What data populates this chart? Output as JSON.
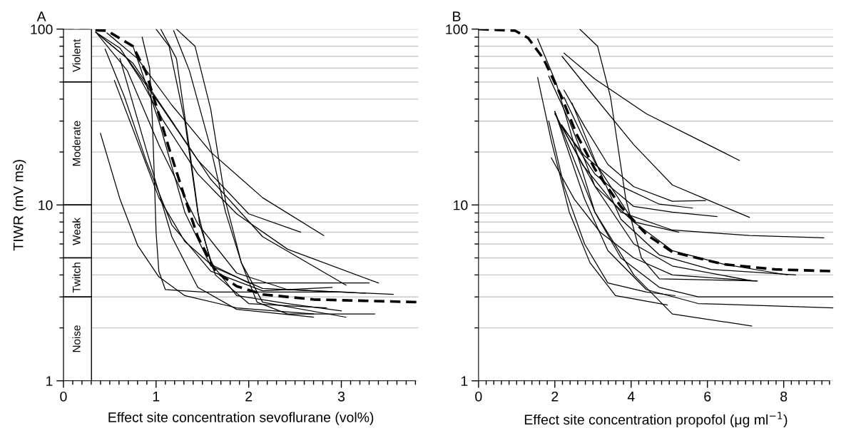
{
  "chart_data": [
    {
      "type": "line",
      "title": "A",
      "xlabel": "Effect site concentration sevoflurane (vol%)",
      "ylabel": "TIWR (mV ms)",
      "log": "y",
      "grid": "y",
      "xlim": [
        0,
        3.83
      ],
      "ylim": [
        1,
        100
      ],
      "xticks": [
        0,
        {
          "value": 0.1,
          "label": null
        },
        {
          "value": 0.2,
          "label": null
        },
        {
          "value": 0.3,
          "label": null
        },
        {
          "value": 0.4,
          "label": null
        },
        {
          "value": 0.5,
          "label": null
        },
        {
          "value": 0.6,
          "label": null
        },
        {
          "value": 0.7,
          "label": null
        },
        {
          "value": 0.8,
          "label": null
        },
        {
          "value": 0.9,
          "label": null
        },
        1,
        {
          "value": 1.1,
          "label": null
        },
        {
          "value": 1.2,
          "label": null
        },
        {
          "value": 1.3,
          "label": null
        },
        {
          "value": 1.4,
          "label": null
        },
        {
          "value": 1.5,
          "label": null
        },
        {
          "value": 1.6,
          "label": null
        },
        {
          "value": 1.7,
          "label": null
        },
        {
          "value": 1.8,
          "label": null
        },
        {
          "value": 1.9,
          "label": null
        },
        2,
        {
          "value": 2.1,
          "label": null
        },
        {
          "value": 2.2,
          "label": null
        },
        {
          "value": 2.3,
          "label": null
        },
        {
          "value": 2.4,
          "label": null
        },
        {
          "value": 2.5,
          "label": null
        },
        {
          "value": 2.6,
          "label": null
        },
        {
          "value": 2.7,
          "label": null
        },
        {
          "value": 2.8,
          "label": null
        },
        {
          "value": 2.9,
          "label": null
        },
        3,
        {
          "value": 3.1,
          "label": null
        },
        {
          "value": 3.2,
          "label": null
        },
        {
          "value": 3.3,
          "label": null
        },
        {
          "value": 3.4,
          "label": null
        },
        {
          "value": 3.5,
          "label": null
        },
        {
          "value": 3.6,
          "label": null
        },
        {
          "value": 3.7,
          "label": null
        },
        {
          "value": 3.8,
          "label": null
        }
      ],
      "yticks": [
        1,
        {
          "value": 2,
          "label": null
        },
        {
          "value": 3,
          "label": null
        },
        {
          "value": 4,
          "label": null
        },
        {
          "value": 5,
          "label": null
        },
        {
          "value": 6,
          "label": null
        },
        {
          "value": 7,
          "label": null
        },
        {
          "value": 8,
          "label": null
        },
        {
          "value": 9,
          "label": null
        },
        10,
        {
          "value": 20,
          "label": null
        },
        {
          "value": 30,
          "label": null
        },
        {
          "value": 40,
          "label": null
        },
        {
          "value": 50,
          "label": null
        },
        {
          "value": 60,
          "label": null
        },
        {
          "value": 70,
          "label": null
        },
        {
          "value": 80,
          "label": null
        },
        {
          "value": 90,
          "label": null
        },
        100
      ],
      "bands": [
        {
          "axis": "y",
          "from": 50,
          "to": 100,
          "label": "Violent",
          "color": "#ffffff"
        },
        {
          "axis": "y",
          "from": 10,
          "to": 50,
          "label": "Moderate",
          "color": "#ffffff"
        },
        {
          "axis": "y",
          "from": 5,
          "to": 10,
          "label": "Weak",
          "color": "#ffffff"
        },
        {
          "axis": "y",
          "from": 3,
          "to": 5,
          "label": "Twitch",
          "color": "#ffffff"
        },
        {
          "axis": "y",
          "from": 1,
          "to": 3,
          "label": "Noise",
          "color": "#ffffff"
        }
      ],
      "series": [
        {
          "color": "#000000",
          "x": [
            0.4,
            0.61,
            0.8,
            1.03,
            1.31,
            1.87,
            2.7
          ],
          "values": [
            25.5,
            10.8,
            5.9,
            3.9,
            3.05,
            2.6,
            2.4
          ]
        },
        {
          "color": "#000000",
          "x": [
            0.85,
            0.93,
            0.96,
            0.98,
            1.0,
            1.03,
            1.1,
            1.5,
            3.05
          ],
          "values": [
            90,
            60,
            30,
            15,
            7,
            4.2,
            3.3,
            3.2,
            3.2
          ]
        },
        {
          "color": "#000000",
          "x": [
            0.45,
            0.66,
            0.89,
            1.17,
            1.59,
            2.15,
            2.9
          ],
          "values": [
            77,
            41,
            18,
            7.7,
            4.2,
            3.25,
            3.4
          ]
        },
        {
          "color": "#000000",
          "x": [
            0.55,
            0.75,
            1.03,
            1.31,
            1.59,
            2.0,
            3.3
          ],
          "values": [
            51,
            27,
            11,
            6.2,
            4.6,
            3.6,
            3.6
          ]
        },
        {
          "color": "#000000",
          "x": [
            0.35,
            0.61,
            0.83,
            1.08,
            1.45,
            1.87,
            2.42,
            3.4
          ],
          "values": [
            96,
            78,
            52,
            30,
            15,
            8.9,
            5.6,
            3.6
          ]
        },
        {
          "color": "#000000",
          "x": [
            0.35,
            0.69,
            1.03,
            1.45,
            2.0,
            2.56
          ],
          "values": [
            96,
            68,
            38,
            18,
            8.9,
            7.0
          ]
        },
        {
          "color": "#000000",
          "x": [
            0.47,
            0.8,
            1.17,
            1.59,
            2.15,
            2.81
          ],
          "values": [
            95,
            68,
            37,
            20,
            11,
            6.7
          ]
        },
        {
          "color": "#000000",
          "x": [
            0.35,
            0.75,
            1.17,
            1.59,
            2.15,
            3.05
          ],
          "values": [
            96,
            64,
            30,
            14,
            6.6,
            3.5
          ]
        },
        {
          "color": "#000000",
          "x": [
            1.0,
            1.14,
            1.31,
            1.45,
            1.59,
            1.87,
            2.42,
            3.0
          ],
          "values": [
            100,
            80,
            30,
            9.1,
            4.7,
            3.05,
            2.75,
            2.5
          ]
        },
        {
          "color": "#000000",
          "x": [
            1.05,
            1.22,
            1.36,
            1.47,
            1.64,
            2.0,
            2.84
          ],
          "values": [
            100,
            68,
            21,
            7.8,
            4.0,
            2.75,
            2.6
          ]
        },
        {
          "color": "#000000",
          "x": [
            1.19,
            1.36,
            1.59,
            1.75,
            1.92,
            2.15,
            3.05
          ],
          "values": [
            98,
            58,
            21,
            9.1,
            4.7,
            2.8,
            2.3
          ]
        },
        {
          "color": "#000000",
          "x": [
            1.22,
            1.42,
            1.59,
            1.75,
            1.92,
            2.09,
            2.42,
            3.36
          ],
          "values": [
            100,
            80,
            35,
            10.5,
            4.7,
            2.8,
            2.4,
            2.4
          ]
        },
        {
          "color": "#000000",
          "x": [
            0.35,
            0.69,
            1.03,
            1.45,
            1.87,
            2.42,
            3.56
          ],
          "values": [
            96,
            58,
            22,
            7.8,
            4.1,
            3.3,
            3.1
          ]
        },
        {
          "color": "#000000",
          "x": [
            0.75,
            1.03,
            1.31,
            1.59,
            2.15,
            3.26
          ],
          "values": [
            80,
            30,
            9.1,
            4.5,
            3.35,
            3.15
          ]
        },
        {
          "color": "#000000",
          "x": [
            0.61,
            0.89,
            1.17,
            1.45,
            1.87,
            2.7
          ],
          "values": [
            68,
            21,
            6.6,
            3.4,
            2.55,
            2.3
          ]
        },
        {
          "color": "#000000",
          "line_style": "dashed",
          "x": [
            0,
            0.47,
            0.75,
            0.89,
            1.0,
            1.14,
            1.31,
            1.45,
            1.64,
            1.87,
            2.15,
            2.7,
            3.83
          ],
          "values": [
            100,
            98,
            80,
            57,
            37,
            21,
            11,
            6.6,
            4.2,
            3.45,
            3.1,
            2.9,
            2.8
          ]
        }
      ]
    },
    {
      "type": "line",
      "title": "B",
      "xlabel": "Effect site concentration propofol (μg ml$^{−1}$)",
      "log": "y",
      "grid": "y",
      "xlim": [
        0,
        9.3
      ],
      "ylim": [
        1,
        100
      ],
      "xticks": [
        0,
        {
          "value": 0.2,
          "label": null
        },
        {
          "value": 0.4,
          "label": null
        },
        {
          "value": 0.6,
          "label": null
        },
        {
          "value": 0.8,
          "label": null
        },
        {
          "value": 1.0,
          "label": null
        },
        {
          "value": 1.2,
          "label": null
        },
        {
          "value": 1.4,
          "label": null
        },
        {
          "value": 1.6,
          "label": null
        },
        {
          "value": 1.8,
          "label": null
        },
        2,
        {
          "value": 2.2,
          "label": null
        },
        {
          "value": 2.4,
          "label": null
        },
        {
          "value": 2.6,
          "label": null
        },
        {
          "value": 2.8,
          "label": null
        },
        {
          "value": 3.0,
          "label": null
        },
        {
          "value": 3.2,
          "label": null
        },
        {
          "value": 3.4,
          "label": null
        },
        {
          "value": 3.6,
          "label": null
        },
        {
          "value": 3.8,
          "label": null
        },
        4,
        {
          "value": 4.2,
          "label": null
        },
        {
          "value": 4.4,
          "label": null
        },
        {
          "value": 4.6,
          "label": null
        },
        {
          "value": 4.8,
          "label": null
        },
        {
          "value": 5.0,
          "label": null
        },
        {
          "value": 5.2,
          "label": null
        },
        {
          "value": 5.4,
          "label": null
        },
        {
          "value": 5.6,
          "label": null
        },
        {
          "value": 5.8,
          "label": null
        },
        6,
        {
          "value": 6.2,
          "label": null
        },
        {
          "value": 6.4,
          "label": null
        },
        {
          "value": 6.6,
          "label": null
        },
        {
          "value": 6.8,
          "label": null
        },
        {
          "value": 7.0,
          "label": null
        },
        {
          "value": 7.2,
          "label": null
        },
        {
          "value": 7.4,
          "label": null
        },
        {
          "value": 7.6,
          "label": null
        },
        {
          "value": 7.8,
          "label": null
        },
        8,
        {
          "value": 8.2,
          "label": null
        },
        {
          "value": 8.4,
          "label": null
        },
        {
          "value": 8.6,
          "label": null
        },
        {
          "value": 8.8,
          "label": null
        },
        {
          "value": 9.0,
          "label": null
        },
        {
          "value": 9.2,
          "label": null
        }
      ],
      "yticks": [
        1,
        {
          "value": 2,
          "label": null
        },
        {
          "value": 3,
          "label": null
        },
        {
          "value": 4,
          "label": null
        },
        {
          "value": 5,
          "label": null
        },
        {
          "value": 6,
          "label": null
        },
        {
          "value": 7,
          "label": null
        },
        {
          "value": 8,
          "label": null
        },
        {
          "value": 9,
          "label": null
        },
        10,
        {
          "value": 20,
          "label": null
        },
        {
          "value": 30,
          "label": null
        },
        {
          "value": 40,
          "label": null
        },
        {
          "value": 50,
          "label": null
        },
        {
          "value": 60,
          "label": null
        },
        {
          "value": 70,
          "label": null
        },
        {
          "value": 80,
          "label": null
        },
        {
          "value": 90,
          "label": null
        },
        100
      ],
      "series": [
        {
          "color": "#000000",
          "x": [
            2.65,
            3.12,
            3.46,
            3.86,
            4.27,
            4.74,
            7.31
          ],
          "values": [
            100,
            80,
            41,
            10.8,
            5.0,
            3.8,
            3.7
          ]
        },
        {
          "color": "#000000",
          "x": [
            2.24,
            3.05,
            4.4,
            5.76,
            6.84
          ],
          "values": [
            73,
            52,
            33,
            23.5,
            17.9
          ]
        },
        {
          "color": "#000000",
          "x": [
            2.19,
            3.05,
            4.07,
            5.08,
            6.09,
            7.1
          ],
          "values": [
            70,
            41,
            22,
            13,
            10.5,
            8.5
          ]
        },
        {
          "color": "#000000",
          "x": [
            1.55,
            2.04,
            2.51,
            3.05,
            3.73,
            4.74,
            5.76,
            9.3
          ],
          "values": [
            88,
            49,
            22,
            9.1,
            5.0,
            3.4,
            3.0,
            3.0
          ]
        },
        {
          "color": "#000000",
          "x": [
            1.55,
            1.91,
            2.38,
            2.92,
            3.59,
            4.95
          ],
          "values": [
            53,
            23,
            9.1,
            4.7,
            3.05,
            2.7
          ]
        },
        {
          "color": "#000000",
          "x": [
            1.84,
            2.24,
            2.78,
            3.39,
            4.4,
            5.15
          ],
          "values": [
            30,
            12.8,
            6.0,
            3.6,
            3.2,
            3.05
          ]
        },
        {
          "color": "#000000",
          "x": [
            1.91,
            2.51,
            3.19,
            4.07,
            5.08,
            7.28
          ],
          "values": [
            18.5,
            10.8,
            7.0,
            5.0,
            4.0,
            3.7
          ]
        },
        {
          "color": "#000000",
          "x": [
            2.24,
            2.78,
            3.39,
            4.07,
            5.08,
            5.95
          ],
          "values": [
            45,
            28,
            17,
            12.7,
            10.5,
            10.6
          ]
        },
        {
          "color": "#000000",
          "x": [
            2.18,
            2.78,
            3.73,
            4.74,
            5.61
          ],
          "values": [
            28,
            19,
            12.8,
            10.1,
            9.6
          ]
        },
        {
          "color": "#000000",
          "x": [
            2.18,
            3.05,
            4.07,
            5.08,
            6.25
          ],
          "values": [
            28.5,
            15,
            9.8,
            9.1,
            8.6
          ]
        },
        {
          "color": "#000000",
          "x": [
            2.0,
            2.72,
            3.73,
            5.08,
            7.1,
            9.05
          ],
          "values": [
            33,
            17,
            9.1,
            7.2,
            6.7,
            6.5
          ]
        },
        {
          "color": "#000000",
          "x": [
            2.18,
            3.05,
            4.07,
            5.25
          ],
          "values": [
            28,
            12.8,
            8.0,
            7.0
          ]
        },
        {
          "color": "#000000",
          "x": [
            2.45,
            3.05,
            3.73,
            4.74,
            6.09,
            8.31
          ],
          "values": [
            38,
            18,
            8.3,
            5.2,
            4.3,
            4.0
          ]
        },
        {
          "color": "#000000",
          "x": [
            2.0,
            2.78,
            3.39,
            4.4,
            5.76,
            9.3
          ],
          "values": [
            34,
            10.8,
            5.5,
            3.3,
            2.75,
            2.6
          ]
        },
        {
          "color": "#000000",
          "x": [
            2.0,
            3.05,
            4.07,
            5.08,
            7.16
          ],
          "values": [
            34,
            9.1,
            4.0,
            2.4,
            2.05
          ]
        },
        {
          "color": "#000000",
          "x": [
            1.84,
            2.38,
            3.05,
            4.07,
            5.08,
            7.18
          ],
          "values": [
            54,
            30,
            12.8,
            6.0,
            4.5,
            3.7
          ]
        },
        {
          "color": "#000000",
          "x": [
            2.24,
            3.05,
            4.07,
            5.08,
            6.43,
            8.1
          ],
          "values": [
            41,
            17.5,
            8.0,
            5.5,
            4.6,
            4.0
          ]
        },
        {
          "color": "#000000",
          "line_style": "dashed",
          "x": [
            0,
            0.96,
            1.3,
            1.7,
            2.18,
            2.58,
            3.05,
            3.73,
            4.4,
            5.08,
            6.43,
            7.78,
            9.3
          ],
          "values": [
            100,
            98,
            89,
            68,
            41,
            25,
            16,
            9.8,
            6.8,
            5.4,
            4.6,
            4.3,
            4.2
          ]
        }
      ]
    }
  ]
}
